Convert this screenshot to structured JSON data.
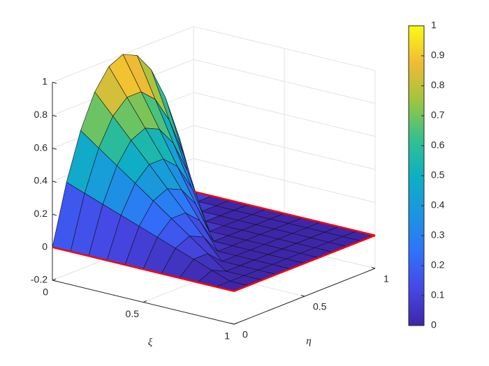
{
  "chart_data": {
    "type": "surface",
    "x_label": "ξ",
    "y_label": "η",
    "x": [
      0,
      0.1,
      0.2,
      0.3,
      0.4,
      0.5,
      0.6,
      0.7,
      0.8,
      0.9,
      1
    ],
    "y": [
      0,
      0.1,
      0.2,
      0.3,
      0.4,
      0.5,
      0.6,
      0.7,
      0.8,
      0.9,
      1
    ],
    "z": [
      [
        0,
        0.36,
        0.64,
        0.84,
        0.96,
        1,
        0.96,
        0.84,
        0.64,
        0.36,
        0
      ],
      [
        0,
        0.32,
        0.56,
        0.72,
        0.8,
        0.8,
        0.72,
        0.56,
        0.32,
        0,
        0
      ],
      [
        0,
        0.28,
        0.48,
        0.6,
        0.64,
        0.6,
        0.48,
        0.28,
        0,
        0,
        0
      ],
      [
        0,
        0.24,
        0.4,
        0.48,
        0.48,
        0.4,
        0.24,
        0,
        0,
        0,
        0
      ],
      [
        0,
        0.2,
        0.32,
        0.36,
        0.32,
        0.2,
        0,
        0,
        0,
        0,
        0
      ],
      [
        0,
        0.16,
        0.24,
        0.24,
        0.16,
        0,
        0,
        0,
        0,
        0,
        0
      ],
      [
        0,
        0.12,
        0.16,
        0.12,
        0,
        0,
        0,
        0,
        0,
        0,
        0
      ],
      [
        0,
        0.08,
        0.08,
        0,
        0,
        0,
        0,
        0,
        0,
        0,
        0
      ],
      [
        0,
        0.04,
        0,
        0,
        0,
        0,
        0,
        0,
        0,
        0,
        0
      ],
      [
        0,
        0,
        0,
        0,
        0,
        0,
        0,
        0,
        0,
        0,
        0
      ],
      [
        0,
        0,
        0,
        0,
        0,
        0,
        0,
        0,
        0,
        0,
        0
      ]
    ],
    "xlim": [
      0,
      1
    ],
    "xticks": [
      0,
      0.5,
      1
    ],
    "ylim": [
      0,
      1
    ],
    "yticks": [
      0,
      0.5,
      1
    ],
    "zlim": [
      -0.2,
      1
    ],
    "zticks": [
      -0.2,
      0,
      0.2,
      0.4,
      0.6,
      0.8,
      1
    ],
    "colorbar_ticks": [
      0,
      0.1,
      0.2,
      0.3,
      0.4,
      0.5,
      0.6,
      0.7,
      0.8,
      0.9,
      1
    ],
    "colormap": [
      "#3e26a8",
      "#4648e6",
      "#2f73fb",
      "#1b96e0",
      "#0eb0c2",
      "#35c18b",
      "#9fc540",
      "#f0bb35",
      "#f9fb15"
    ],
    "boundary_color": "#ff0000",
    "grid": true
  }
}
